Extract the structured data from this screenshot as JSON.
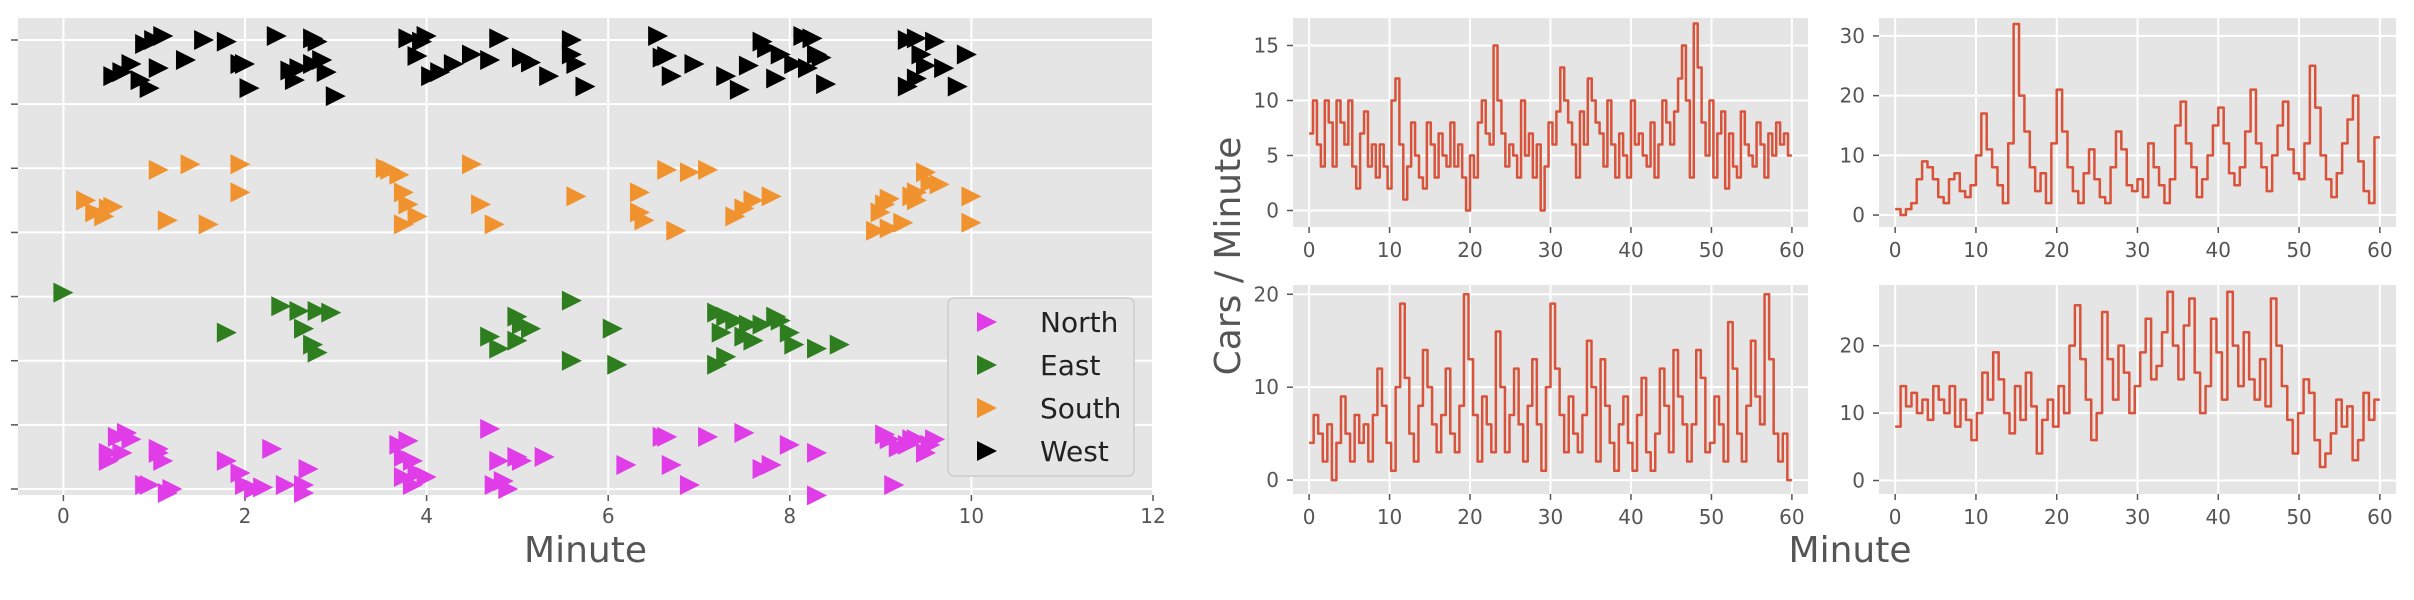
{
  "chart_data": [
    {
      "type": "scatter",
      "marker": "right-triangle",
      "xlabel": "Minute",
      "ylabel": "",
      "xlim": [
        -0.5,
        12
      ],
      "xticks": [
        0,
        2,
        4,
        6,
        8,
        10,
        12
      ],
      "ytick_count": 8,
      "legend_position": "lower-right",
      "series": [
        {
          "name": "North",
          "color": "#e03ce8",
          "x": [
            0.5,
            0.6,
            0.7,
            0.5,
            0.65,
            0.75,
            0.9,
            1.05,
            1.1,
            1.2,
            1.05,
            0.95,
            1.15,
            1.8,
            1.95,
            2.0,
            2.1,
            2.2,
            2.3,
            2.45,
            2.65,
            2.7,
            2.65,
            3.7,
            3.75,
            3.8,
            3.85,
            3.75,
            3.9,
            4.0,
            3.85,
            4.7,
            4.8,
            4.85,
            5.0,
            4.75,
            4.9,
            5.05,
            5.3,
            6.2,
            6.6,
            6.65,
            6.7,
            6.9,
            7.1,
            7.5,
            7.7,
            7.8,
            8.0,
            8.3,
            8.3,
            9.05,
            9.1,
            9.2,
            9.3,
            9.35,
            9.4,
            9.5,
            9.6,
            9.55,
            9.15
          ],
          "y": [
            0.55,
            0.75,
            0.8,
            0.45,
            0.55,
            0.72,
            0.15,
            0.55,
            0.45,
            0.1,
            0.6,
            0.15,
            0.05,
            0.45,
            0.3,
            0.15,
            0.1,
            0.12,
            0.6,
            0.15,
            0.15,
            0.35,
            0.05,
            0.65,
            0.5,
            0.7,
            0.45,
            0.25,
            0.3,
            0.25,
            0.15,
            0.85,
            0.45,
            0.2,
            0.5,
            0.15,
            0.1,
            0.45,
            0.5,
            0.4,
            0.75,
            0.75,
            0.4,
            0.15,
            0.75,
            0.8,
            0.35,
            0.4,
            0.65,
            0.55,
            0.02,
            0.78,
            0.72,
            0.62,
            0.65,
            0.72,
            0.72,
            0.55,
            0.72,
            0.65,
            0.15
          ]
        },
        {
          "name": "East",
          "color": "#2e7d1e",
          "x": [
            0.0,
            1.8,
            2.4,
            2.6,
            2.8,
            2.65,
            2.95,
            2.75,
            2.8,
            4.7,
            4.8,
            5.0,
            5.05,
            5.15,
            5.0,
            5.6,
            5.6,
            6.05,
            6.1,
            7.2,
            7.3,
            7.4,
            7.25,
            7.5,
            7.6,
            7.7,
            7.85,
            7.9,
            8.0,
            8.05,
            8.3,
            8.55,
            7.3,
            7.2,
            7.55
          ],
          "y": [
            0.95,
            0.45,
            0.78,
            0.72,
            0.72,
            0.5,
            0.7,
            0.3,
            0.2,
            0.4,
            0.25,
            0.65,
            0.55,
            0.5,
            0.35,
            0.85,
            0.1,
            0.5,
            0.05,
            0.7,
            0.65,
            0.6,
            0.45,
            0.4,
            0.35,
            0.55,
            0.65,
            0.6,
            0.45,
            0.3,
            0.25,
            0.3,
            0.15,
            0.05,
            0.55
          ],
          "note": "y is normalized 0..1 within band"
        },
        {
          "name": "South",
          "color": "#f0922e",
          "x": [
            0.25,
            0.35,
            0.5,
            0.55,
            0.45,
            1.05,
            1.4,
            1.15,
            1.6,
            1.95,
            1.95,
            3.55,
            3.6,
            3.7,
            3.75,
            3.8,
            3.9,
            3.75,
            4.5,
            4.6,
            4.75,
            5.65,
            6.35,
            6.35,
            6.4,
            6.65,
            6.9,
            7.1,
            7.4,
            7.6,
            6.75,
            7.5,
            7.8,
            8.95,
            9.0,
            9.05,
            9.1,
            9.25,
            9.4,
            9.5,
            9.55,
            9.35,
            9.65,
            9.4,
            9.1,
            10.0,
            10.0
          ],
          "y": [
            0.5,
            0.35,
            0.4,
            0.42,
            0.3,
            0.88,
            0.95,
            0.25,
            0.2,
            0.95,
            0.6,
            0.9,
            0.88,
            0.82,
            0.6,
            0.45,
            0.3,
            0.2,
            0.95,
            0.45,
            0.2,
            0.55,
            0.6,
            0.35,
            0.25,
            0.88,
            0.85,
            0.88,
            0.3,
            0.5,
            0.12,
            0.4,
            0.55,
            0.12,
            0.35,
            0.45,
            0.52,
            0.22,
            0.6,
            0.85,
            0.72,
            0.55,
            0.7,
            0.5,
            0.15,
            0.22,
            0.55
          ]
        },
        {
          "name": "West",
          "color": "#000000",
          "x": [
            0.55,
            0.65,
            0.75,
            0.85,
            0.95,
            1.05,
            1.1,
            1.0,
            0.9,
            1.35,
            1.55,
            1.8,
            1.95,
            2.0,
            2.05,
            2.35,
            2.5,
            2.55,
            2.6,
            2.75,
            2.8,
            2.85,
            3.0,
            2.9,
            2.75,
            3.8,
            3.9,
            3.95,
            4.0,
            4.05,
            4.15,
            4.3,
            4.5,
            4.7,
            4.8,
            5.05,
            5.15,
            5.35,
            5.6,
            5.6,
            5.75,
            5.65,
            6.55,
            6.6,
            6.65,
            6.7,
            6.95,
            7.3,
            7.45,
            7.55,
            7.7,
            7.75,
            7.85,
            7.9,
            8.05,
            8.15,
            8.25,
            8.3,
            8.35,
            8.4,
            8.2,
            8.05,
            9.3,
            9.4,
            9.45,
            9.5,
            9.6,
            9.3,
            9.4,
            9.7,
            9.85,
            9.95
          ],
          "y": [
            0.45,
            0.5,
            0.6,
            0.4,
            0.3,
            0.55,
            0.95,
            0.9,
            0.85,
            0.65,
            0.9,
            0.88,
            0.6,
            0.6,
            0.3,
            0.95,
            0.52,
            0.4,
            0.55,
            0.92,
            0.88,
            0.65,
            0.2,
            0.5,
            0.6,
            0.92,
            0.7,
            0.88,
            0.95,
            0.45,
            0.5,
            0.6,
            0.72,
            0.65,
            0.92,
            0.68,
            0.62,
            0.45,
            0.9,
            0.72,
            0.32,
            0.6,
            0.95,
            0.68,
            0.7,
            0.45,
            0.6,
            0.45,
            0.28,
            0.58,
            0.88,
            0.8,
            0.42,
            0.72,
            0.6,
            0.95,
            0.92,
            0.72,
            0.68,
            0.35,
            0.55,
            0.6,
            0.9,
            0.92,
            0.72,
            0.58,
            0.88,
            0.32,
            0.42,
            0.55,
            0.32,
            0.72
          ]
        }
      ],
      "legend": [
        {
          "label": "North",
          "color": "#e03ce8"
        },
        {
          "label": "East",
          "color": "#2e7d1e"
        },
        {
          "label": "South",
          "color": "#f0922e"
        },
        {
          "label": "West",
          "color": "#000000"
        }
      ]
    },
    {
      "type": "line",
      "panel": "top-left",
      "color": "#d9533a",
      "xlim": [
        -2,
        62
      ],
      "ylim": [
        -1.5,
        17.5
      ],
      "xticks": [
        0,
        10,
        20,
        30,
        40,
        50,
        60
      ],
      "yticks": [
        0,
        5,
        10,
        15
      ],
      "values": [
        7,
        10,
        6,
        4,
        10,
        8,
        4,
        10,
        8,
        6,
        10,
        4,
        2,
        7,
        9,
        4,
        6,
        3,
        6,
        4,
        2,
        10,
        12,
        6,
        1,
        4,
        8,
        5,
        3,
        2,
        8,
        6,
        3,
        7,
        5,
        4,
        8,
        4,
        6,
        3,
        0,
        5,
        3,
        8,
        10,
        7,
        6,
        15,
        10,
        7,
        4,
        6,
        5,
        3,
        10,
        5,
        7,
        3,
        6,
        0,
        4,
        8,
        6,
        9,
        13,
        10,
        8,
        6,
        3,
        9,
        6,
        12,
        10,
        8,
        7,
        4,
        10,
        6,
        3,
        7,
        5,
        3,
        10,
        6,
        7,
        5,
        4,
        8,
        3,
        6,
        10,
        8,
        6,
        9,
        12,
        15,
        10,
        3,
        17,
        13,
        8,
        5,
        10,
        3,
        7,
        9,
        2,
        7,
        4,
        3,
        9,
        6,
        5,
        4,
        8,
        6,
        3,
        7,
        5,
        8,
        6,
        7,
        5
      ]
    },
    {
      "type": "line",
      "panel": "top-right",
      "color": "#d9533a",
      "xlim": [
        -2,
        62
      ],
      "ylim": [
        -2,
        33
      ],
      "xticks": [
        0,
        10,
        20,
        30,
        40,
        50,
        60
      ],
      "yticks": [
        0,
        10,
        20,
        30
      ],
      "values": [
        1,
        0,
        1,
        2,
        6,
        9,
        8,
        6,
        3,
        2,
        6,
        7,
        4,
        3,
        5,
        10,
        17,
        11,
        8,
        5,
        2,
        12,
        32,
        20,
        14,
        8,
        4,
        7,
        2,
        12,
        21,
        14,
        8,
        4,
        2,
        7,
        11,
        6,
        3,
        2,
        8,
        14,
        11,
        5,
        4,
        6,
        3,
        12,
        8,
        5,
        2,
        6,
        15,
        19,
        12,
        8,
        3,
        6,
        10,
        15,
        18,
        12,
        7,
        5,
        8,
        14,
        21,
        12,
        8,
        4,
        10,
        15,
        19,
        11,
        7,
        6,
        12,
        25,
        18,
        10,
        6,
        3,
        7,
        12,
        16,
        20,
        9,
        4,
        2,
        13
      ]
    },
    {
      "type": "line",
      "panel": "bottom-left",
      "color": "#d9533a",
      "xlim": [
        -2,
        62
      ],
      "ylim": [
        -1.5,
        21
      ],
      "xticks": [
        0,
        10,
        20,
        30,
        40,
        50,
        60
      ],
      "yticks": [
        0,
        10,
        20
      ],
      "values": [
        4,
        7,
        5,
        2,
        6,
        0,
        4,
        9,
        5,
        2,
        7,
        4,
        6,
        2,
        7,
        12,
        8,
        4,
        1,
        10,
        19,
        11,
        5,
        2,
        8,
        14,
        10,
        6,
        3,
        7,
        12,
        5,
        3,
        8,
        20,
        13,
        7,
        2,
        9,
        6,
        3,
        16,
        10,
        3,
        7,
        12,
        6,
        2,
        8,
        13,
        6,
        1,
        10,
        19,
        12,
        7,
        3,
        9,
        5,
        3,
        7,
        15,
        10,
        2,
        13,
        8,
        4,
        1,
        6,
        9,
        4,
        1,
        7,
        11,
        3,
        1,
        5,
        12,
        8,
        3,
        14,
        9,
        6,
        2,
        6,
        14,
        11,
        3,
        4,
        9,
        6,
        2,
        17,
        12,
        5,
        2,
        8,
        15,
        9,
        6,
        20,
        13,
        5,
        2,
        5,
        0
      ]
    },
    {
      "type": "line",
      "panel": "bottom-right",
      "color": "#d9533a",
      "xlim": [
        -2,
        62
      ],
      "ylim": [
        -2,
        29
      ],
      "xticks": [
        0,
        10,
        20,
        30,
        40,
        50,
        60
      ],
      "yticks": [
        0,
        10,
        20
      ],
      "values": [
        8,
        14,
        11,
        13,
        10,
        12,
        9,
        14,
        12,
        10,
        14,
        8,
        12,
        9,
        6,
        10,
        16,
        12,
        19,
        15,
        10,
        7,
        14,
        9,
        16,
        11,
        4,
        9,
        12,
        8,
        14,
        10,
        20,
        26,
        18,
        12,
        6,
        10,
        25,
        18,
        12,
        20,
        16,
        10,
        14,
        19,
        24,
        15,
        17,
        22,
        28,
        20,
        15,
        23,
        27,
        16,
        10,
        14,
        24,
        19,
        12,
        28,
        20,
        14,
        22,
        15,
        12,
        18,
        11,
        27,
        20,
        14,
        9,
        4,
        10,
        15,
        13,
        6,
        2,
        4,
        7,
        12,
        8,
        11,
        3,
        6,
        13,
        9,
        12
      ]
    }
  ],
  "right_figure": {
    "ylabel": "Cars / Minute",
    "xlabel": "Minute"
  }
}
